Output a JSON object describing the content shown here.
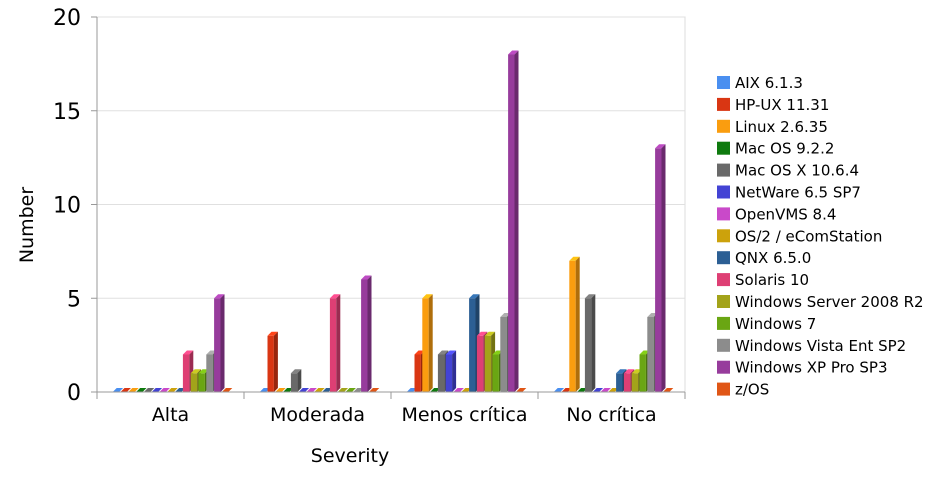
{
  "chart_data": {
    "type": "bar",
    "xlabel": "Severity",
    "ylabel": "Number",
    "ylim": [
      0,
      20
    ],
    "yticks": [
      0,
      5,
      10,
      15,
      20
    ],
    "categories": [
      "Alta",
      "Moderada",
      "Menos crítica",
      "No crítica"
    ],
    "grid": true,
    "legend_position": "right",
    "style": "3d",
    "series": [
      {
        "name": "AIX 6.1.3",
        "color": "#4a8ff0",
        "values": [
          0,
          0,
          0,
          0
        ]
      },
      {
        "name": "HP-UX 11.31",
        "color": "#d93613",
        "values": [
          0,
          3,
          2,
          0
        ]
      },
      {
        "name": "Linux 2.6.35",
        "color": "#fa9d0f",
        "values": [
          0,
          0,
          5,
          7
        ]
      },
      {
        "name": "Mac OS 9.2.2",
        "color": "#0e7a0e",
        "values": [
          0,
          0,
          0,
          0
        ]
      },
      {
        "name": "Mac OS X 10.6.4",
        "color": "#696969",
        "values": [
          0,
          1,
          2,
          5
        ]
      },
      {
        "name": "NetWare 6.5 SP7",
        "color": "#4343d4",
        "values": [
          0,
          0,
          2,
          0
        ]
      },
      {
        "name": "OpenVMS 8.4",
        "color": "#c949c9",
        "values": [
          0,
          0,
          0,
          0
        ]
      },
      {
        "name": "OS/2 / eComStation",
        "color": "#cca20c",
        "values": [
          0,
          0,
          0,
          0
        ]
      },
      {
        "name": "QNX 6.5.0",
        "color": "#2c5f94",
        "values": [
          0,
          0,
          5,
          1
        ]
      },
      {
        "name": "Solaris 10",
        "color": "#de3f74",
        "values": [
          2,
          5,
          3,
          1
        ]
      },
      {
        "name": "Windows Server 2008 R2",
        "color": "#a3a31a",
        "values": [
          1,
          0,
          3,
          1
        ]
      },
      {
        "name": "Windows 7",
        "color": "#6aa613",
        "values": [
          1,
          0,
          2,
          2
        ]
      },
      {
        "name": "Windows Vista Ent SP2",
        "color": "#8c8c8c",
        "values": [
          2,
          0,
          4,
          4
        ]
      },
      {
        "name": "Windows XP Pro SP3",
        "color": "#973c9c",
        "values": [
          5,
          6,
          18,
          13
        ]
      },
      {
        "name": "z/OS",
        "color": "#e05616",
        "values": [
          0,
          0,
          0,
          0
        ]
      }
    ]
  }
}
